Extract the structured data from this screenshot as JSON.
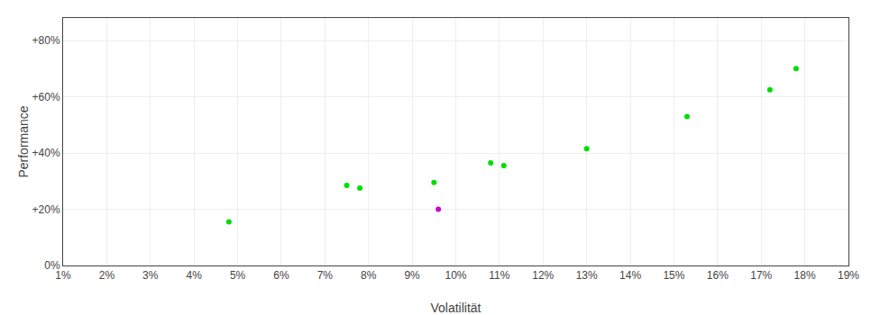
{
  "chart_data": {
    "type": "scatter",
    "x_label": "Volatilität",
    "y_label": "Performance",
    "xlim": [
      0.01,
      0.19
    ],
    "ylim": [
      0.0,
      0.88
    ],
    "xticks": [
      {
        "value": 0.01,
        "label": "1%"
      },
      {
        "value": 0.02,
        "label": "2%"
      },
      {
        "value": 0.03,
        "label": "3%"
      },
      {
        "value": 0.04,
        "label": "4%"
      },
      {
        "value": 0.05,
        "label": "5%"
      },
      {
        "value": 0.06,
        "label": "6%"
      },
      {
        "value": 0.07,
        "label": "7%"
      },
      {
        "value": 0.08,
        "label": "8%"
      },
      {
        "value": 0.09,
        "label": "9%"
      },
      {
        "value": 0.1,
        "label": "10%"
      },
      {
        "value": 0.11,
        "label": "11%"
      },
      {
        "value": 0.12,
        "label": "12%"
      },
      {
        "value": 0.13,
        "label": "13%"
      },
      {
        "value": 0.14,
        "label": "14%"
      },
      {
        "value": 0.15,
        "label": "15%"
      },
      {
        "value": 0.16,
        "label": "16%"
      },
      {
        "value": 0.17,
        "label": "17%"
      },
      {
        "value": 0.18,
        "label": "18%"
      },
      {
        "value": 0.19,
        "label": "19%"
      }
    ],
    "yticks": [
      {
        "value": 0.0,
        "label": "0%"
      },
      {
        "value": 0.2,
        "label": "+20%"
      },
      {
        "value": 0.4,
        "label": "+40%"
      },
      {
        "value": 0.6,
        "label": "+60%"
      },
      {
        "value": 0.8,
        "label": "+80%"
      }
    ],
    "grid": true,
    "series": [
      {
        "color": "#00dd00",
        "x": [
          0.048,
          0.075,
          0.078,
          0.095,
          0.108,
          0.111,
          0.13,
          0.153,
          0.172,
          0.178
        ],
        "values": [
          0.155,
          0.285,
          0.275,
          0.295,
          0.365,
          0.355,
          0.415,
          0.53,
          0.625,
          0.7
        ]
      },
      {
        "color": "#cc00cc",
        "x": [
          0.096
        ],
        "values": [
          0.2
        ]
      }
    ]
  }
}
